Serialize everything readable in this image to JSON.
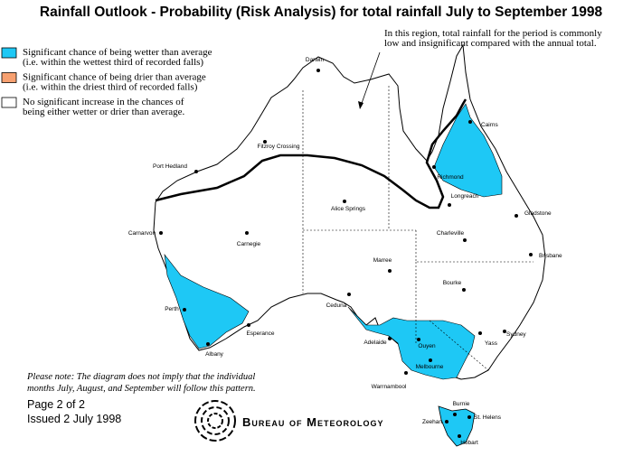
{
  "title": "Rainfall Outlook - Probability (Risk Analysis) for total rainfall July to September 1998",
  "legend": [
    {
      "color": "#1ec8f5",
      "lines": [
        "Significant chance of being wetter than average",
        "(i.e. within the wettest third of recorded falls)"
      ]
    },
    {
      "color": "#f7a070",
      "lines": [
        "Significant chance of being drier than average",
        "(i.e. within the driest third of recorded falls)"
      ]
    },
    {
      "color": "#ffffff",
      "lines": [
        "No significant increase in the chances of",
        "being either wetter or drier than average."
      ]
    }
  ],
  "annotation": [
    "In this region, total rainfall for the period is commonly",
    "low and insignificant compared with the annual total."
  ],
  "towns": [
    "Darwin",
    "Cairns",
    "Fitzroy Crossing",
    "Port Hedland",
    "Richmond",
    "Longreach",
    "Alice Springs",
    "Gladstone",
    "Carnarvon",
    "Charleville",
    "Carnegie",
    "Brisbane",
    "Marree",
    "Bourke",
    "Perth",
    "Ceduna",
    "Sydney",
    "Adelaide",
    "Esperance",
    "Ouyen",
    "Yass",
    "Albany",
    "Melbourne",
    "Warrnambool",
    "Burnie",
    "St. Helens",
    "Zeehan",
    "Hobart"
  ],
  "note": [
    "Please note: The diagram does not imply that the individual",
    "months July, August, and September will follow this pattern."
  ],
  "footer": {
    "page": "Page 2 of 2",
    "issued": "Issued 2 July 1998"
  },
  "agency": "Bureau of Meteorology"
}
